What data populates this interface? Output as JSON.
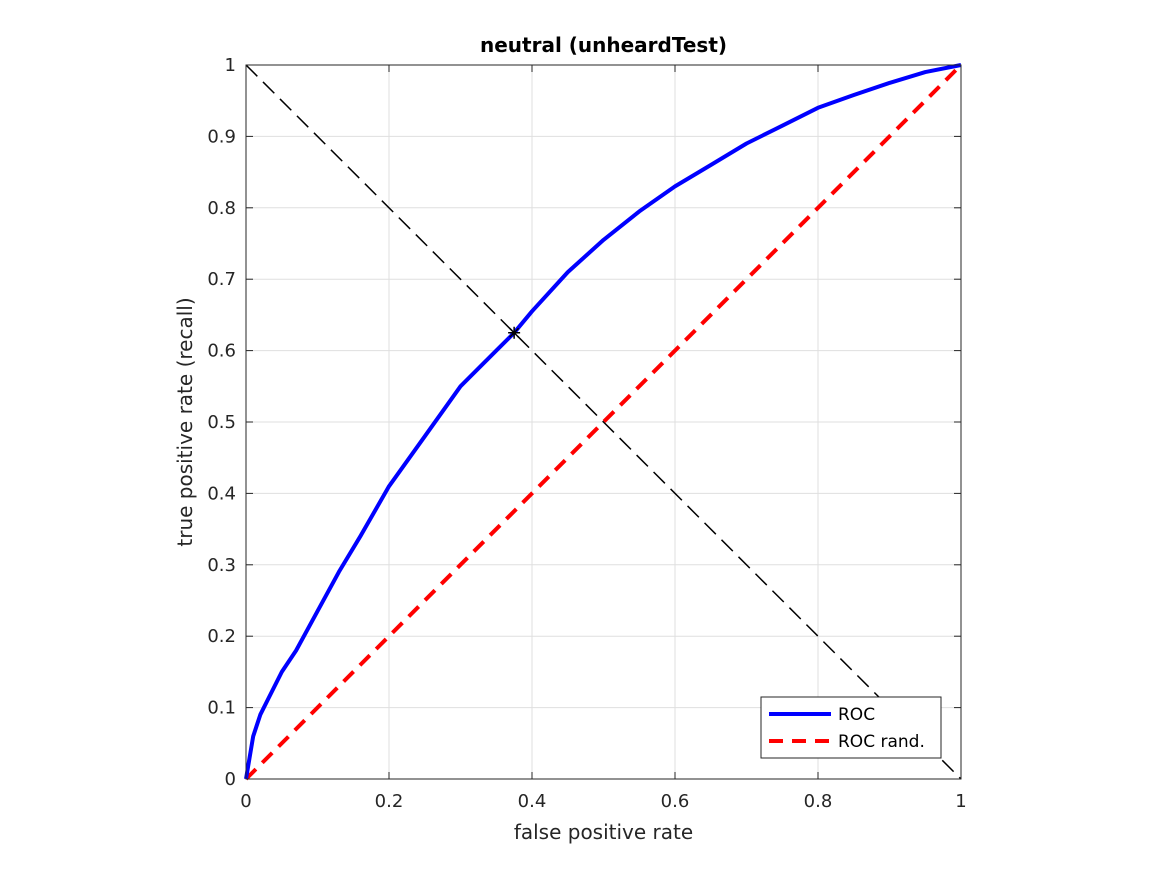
{
  "chart_data": {
    "type": "line",
    "title": "neutral (unheardTest)",
    "xlabel": "false positive rate",
    "ylabel": "true positive rate (recall)",
    "xlim": [
      0,
      1
    ],
    "ylim": [
      0,
      1
    ],
    "xticks": [
      0,
      0.2,
      0.4,
      0.6,
      0.8,
      1
    ],
    "xtick_labels": [
      "0",
      "0.2",
      "0.4",
      "0.6",
      "0.8",
      "1"
    ],
    "yticks": [
      0,
      0.1,
      0.2,
      0.3,
      0.4,
      0.5,
      0.6,
      0.7,
      0.8,
      0.9,
      1
    ],
    "ytick_labels": [
      "0",
      "0.1",
      "0.2",
      "0.3",
      "0.4",
      "0.5",
      "0.6",
      "0.7",
      "0.8",
      "0.9",
      "1"
    ],
    "grid": true,
    "legend_position": "bottom-right",
    "series": [
      {
        "name": "ROC",
        "color": "#0000ff",
        "style": "solid",
        "x": [
          0,
          0.005,
          0.01,
          0.02,
          0.03,
          0.05,
          0.07,
          0.1,
          0.13,
          0.16,
          0.2,
          0.25,
          0.3,
          0.35,
          0.375,
          0.4,
          0.45,
          0.5,
          0.55,
          0.6,
          0.65,
          0.7,
          0.75,
          0.8,
          0.85,
          0.9,
          0.95,
          1.0
        ],
        "y": [
          0,
          0.03,
          0.06,
          0.09,
          0.11,
          0.15,
          0.18,
          0.235,
          0.29,
          0.34,
          0.41,
          0.48,
          0.55,
          0.6,
          0.625,
          0.655,
          0.71,
          0.755,
          0.795,
          0.83,
          0.86,
          0.89,
          0.915,
          0.94,
          0.958,
          0.975,
          0.99,
          1.0
        ]
      },
      {
        "name": "ROC rand.",
        "color": "#ff0000",
        "style": "dashed",
        "x": [
          0,
          1
        ],
        "y": [
          0,
          1
        ]
      },
      {
        "name": "",
        "color": "#000000",
        "style": "dashed",
        "x": [
          0,
          1
        ],
        "y": [
          1,
          0
        ]
      }
    ],
    "markers": [
      {
        "x": 0.375,
        "y": 0.625,
        "symbol": "*",
        "color": "#000000"
      }
    ]
  }
}
